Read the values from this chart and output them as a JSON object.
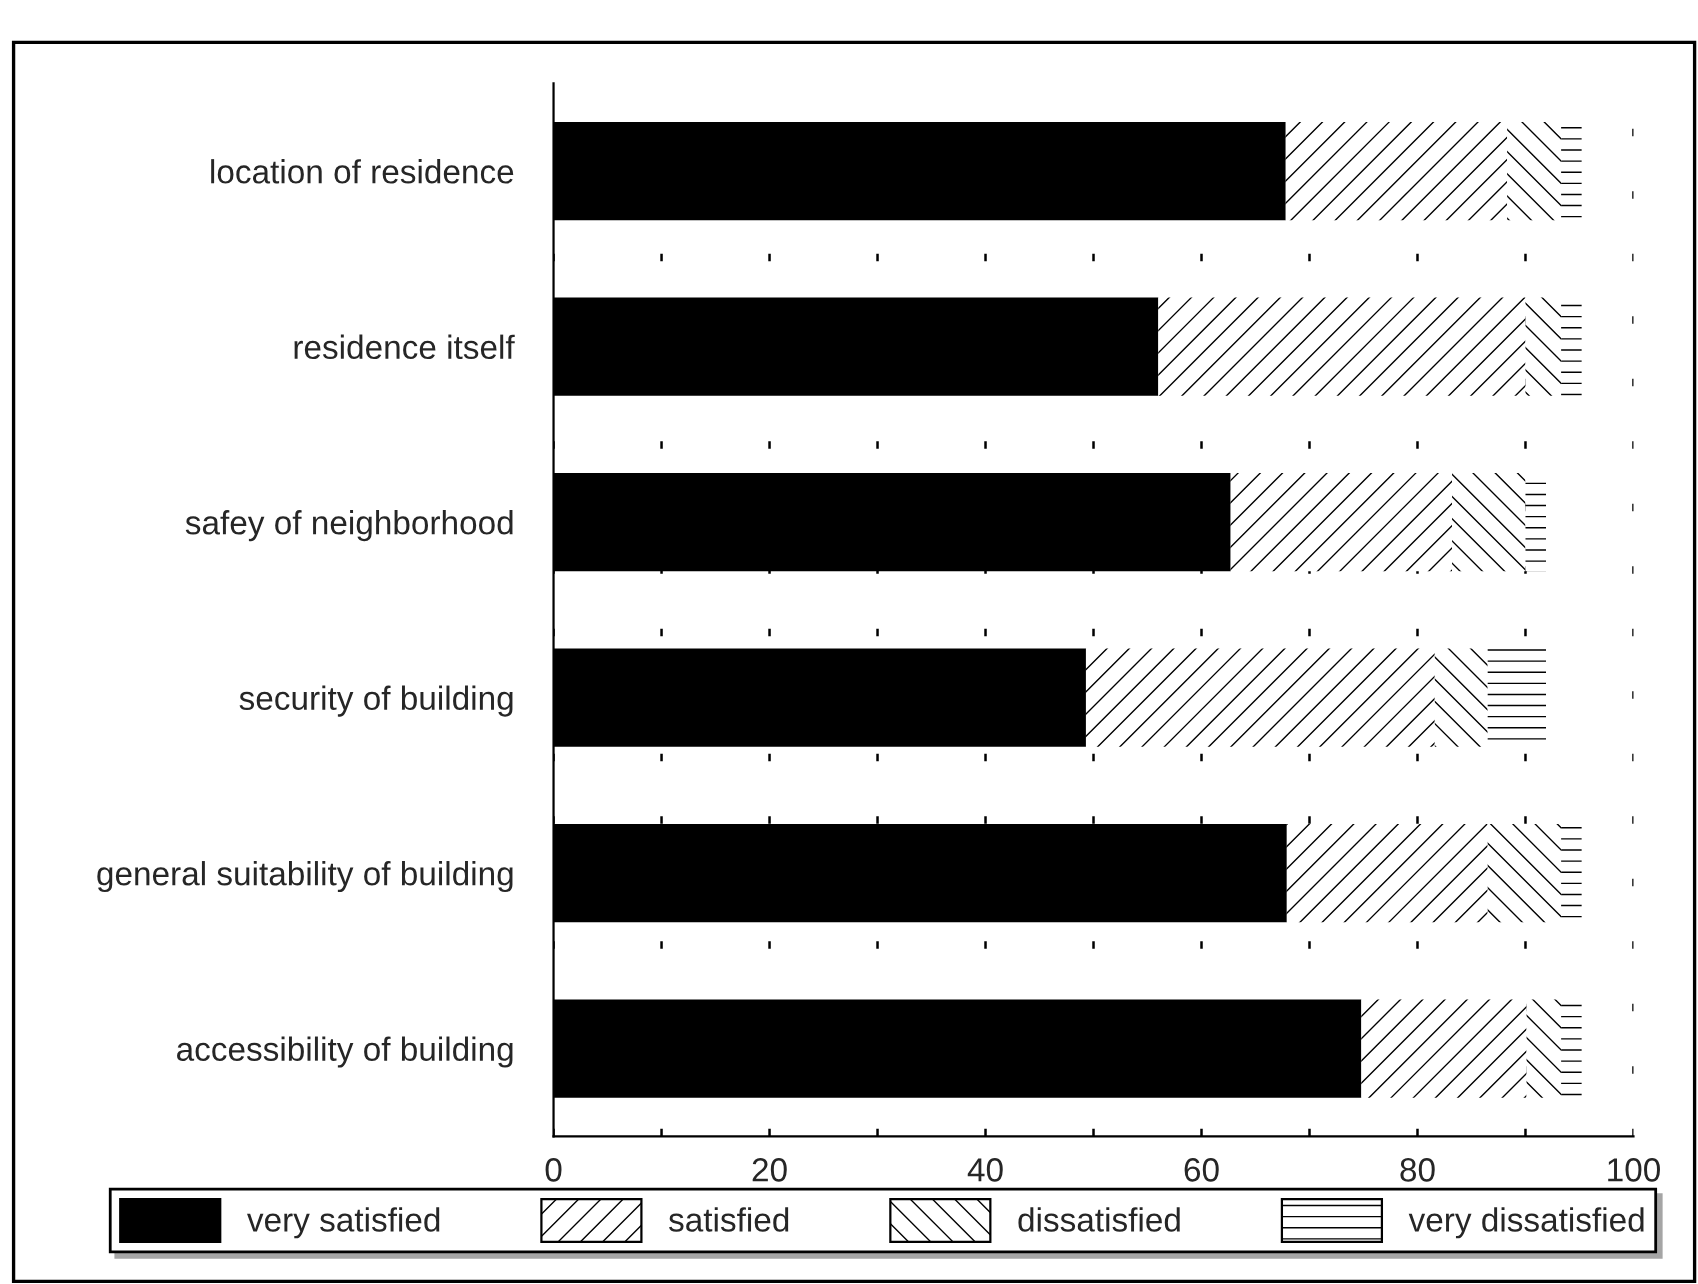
{
  "chart_data": {
    "type": "bar",
    "orientation": "horizontal",
    "stacked": true,
    "categories": [
      "location of residence",
      "residence itself",
      "safey of neighborhood",
      "security of building",
      "general suitability of building",
      "accessibility of building"
    ],
    "series": [
      {
        "name": "very satisfied",
        "color": "#000000",
        "values": [
          67.8,
          56.0,
          62.7,
          49.3,
          67.9,
          74.8
        ]
      },
      {
        "name": "satisfied",
        "color": "#ffffff",
        "values": [
          20.5,
          34.0,
          20.5,
          32.3,
          18.6,
          15.3
        ]
      },
      {
        "name": "dissatisfied",
        "color": "#ffffff",
        "values": [
          5.0,
          3.3,
          6.8,
          4.9,
          6.8,
          3.2
        ]
      },
      {
        "name": "very dissatisfied",
        "color": "#ffffff",
        "values": [
          1.9,
          1.9,
          1.9,
          5.4,
          1.9,
          1.9
        ]
      }
    ],
    "xlim": [
      0,
      100
    ],
    "xticks": [
      0,
      {
        "value": 10,
        "label": null
      },
      20,
      {
        "value": 30,
        "label": null
      },
      40,
      {
        "value": 50,
        "label": null
      },
      60,
      {
        "value": 70,
        "label": null
      },
      80,
      {
        "value": 90,
        "label": null
      },
      100
    ],
    "grid": "x",
    "legend": "bottom"
  }
}
